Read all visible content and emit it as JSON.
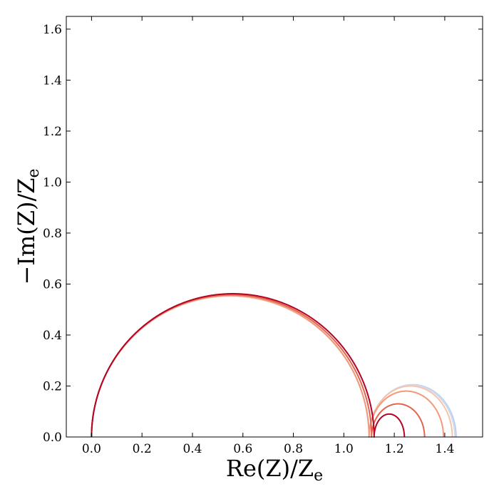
{
  "chart_data": {
    "type": "line",
    "title": "",
    "xlabel": "Re(Z)/Z",
    "xlabel_sub": "e",
    "ylabel": "−Im(Z)/Z",
    "ylabel_sub": "e",
    "xlim": [
      -0.1,
      1.55
    ],
    "ylim": [
      0.0,
      1.65
    ],
    "xticks": [
      0.0,
      0.2,
      0.4,
      0.6,
      0.8,
      1.0,
      1.2,
      1.4
    ],
    "xtick_labels": [
      "0.0",
      "0.2",
      "0.4",
      "0.6",
      "0.8",
      "1.0",
      "1.2",
      "1.4"
    ],
    "yticks": [
      0.0,
      0.2,
      0.4,
      0.6,
      0.8,
      1.0,
      1.2,
      1.4,
      1.6
    ],
    "ytick_labels": [
      "0.0",
      "0.2",
      "0.4",
      "0.6",
      "0.8",
      "1.0",
      "1.2",
      "1.4",
      "1.6"
    ],
    "grid": false,
    "series": [
      {
        "color": "#b9d0f9",
        "r1": 1.1,
        "h1": 0.553,
        "r2": 0.345,
        "h2": 0.205
      },
      {
        "color": "#d4dbe6",
        "r1": 1.1,
        "h1": 0.553,
        "r2": 0.34,
        "h2": 0.203
      },
      {
        "color": "#f5c4ac",
        "r1": 1.1,
        "h1": 0.553,
        "r2": 0.33,
        "h2": 0.2
      },
      {
        "color": "#f4987a",
        "r1": 1.1,
        "h1": 0.555,
        "r2": 0.295,
        "h2": 0.18
      },
      {
        "color": "#e0654f",
        "r1": 1.11,
        "h1": 0.558,
        "r2": 0.21,
        "h2": 0.13
      },
      {
        "color": "#b40426",
        "r1": 1.12,
        "h1": 0.562,
        "r2": 0.12,
        "h2": 0.09
      }
    ]
  }
}
